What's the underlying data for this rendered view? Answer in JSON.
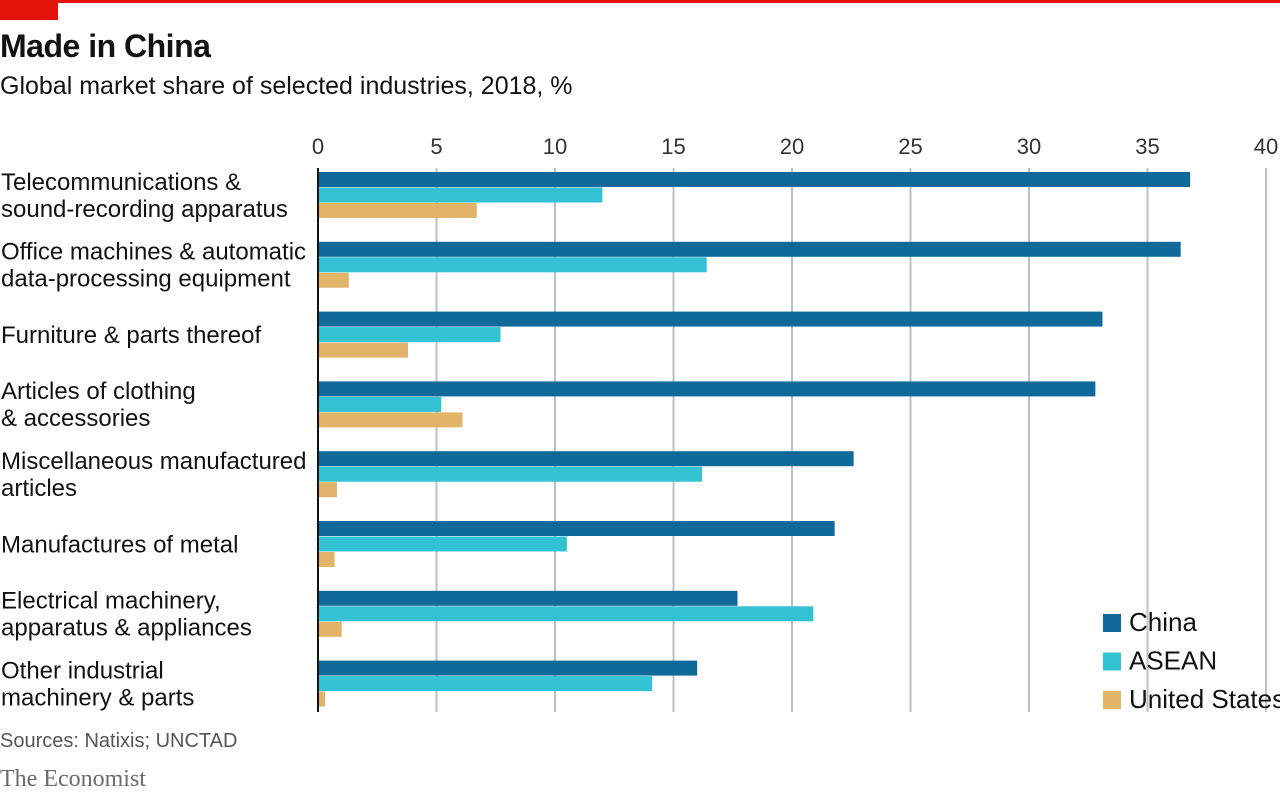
{
  "header": {
    "title": "Made in China",
    "subtitle": "Global market share of selected industries, 2018, %"
  },
  "footer": {
    "source": "Sources: Natixis; UNCTAD",
    "brand": "The Economist"
  },
  "chart_data": {
    "type": "bar",
    "orientation": "horizontal",
    "title": "Made in China",
    "subtitle": "Global market share of selected industries, 2018, %",
    "xlim": [
      0,
      40
    ],
    "ticks": [
      0,
      5,
      10,
      15,
      20,
      25,
      30,
      35,
      40
    ],
    "grid": true,
    "legend_position": "bottom-right",
    "categories": [
      [
        "Telecommunications &",
        "sound-recording apparatus"
      ],
      [
        "Office machines & automatic",
        "data-processing equipment"
      ],
      [
        "Furniture & parts thereof"
      ],
      [
        "Articles of clothing",
        "& accessories"
      ],
      [
        "Miscellaneous manufactured",
        "articles"
      ],
      [
        "Manufactures of metal"
      ],
      [
        "Electrical machinery,",
        "apparatus & appliances"
      ],
      [
        "Other industrial",
        "machinery & parts"
      ]
    ],
    "series": [
      {
        "name": "China",
        "color": "#0f6a9a",
        "values": [
          36.8,
          36.4,
          33.1,
          32.8,
          22.6,
          21.8,
          17.7,
          16.0
        ]
      },
      {
        "name": "ASEAN",
        "color": "#33c1d4",
        "values": [
          12.0,
          16.4,
          7.7,
          5.2,
          16.2,
          10.5,
          20.9,
          14.1
        ]
      },
      {
        "name": "United States",
        "color": "#e2b46a",
        "values": [
          6.7,
          1.3,
          3.8,
          6.1,
          0.8,
          0.7,
          1.0,
          0.3
        ]
      }
    ]
  }
}
